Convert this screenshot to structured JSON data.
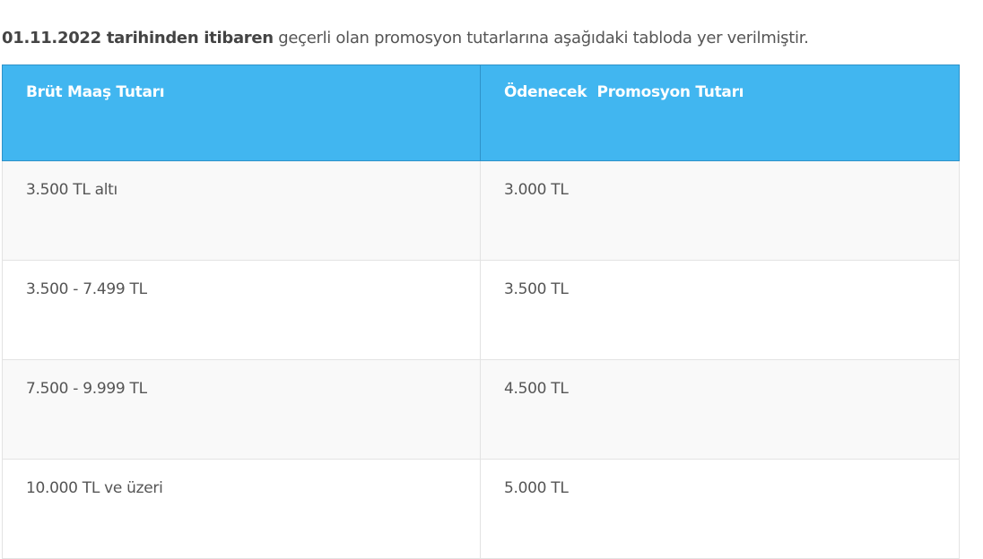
{
  "intro": {
    "bold": "01.11.2022 tarihinden itibaren",
    "rest": " geçerli olan promosyon tutarlarına aşağıdaki tabloda yer verilmiştir."
  },
  "colors": {
    "header_bg": "#41b6f0",
    "header_text": "#ffffff"
  },
  "table": {
    "headers": [
      "Brüt Maaş Tutarı",
      "Ödenecek  Promosyon Tutarı"
    ],
    "rows": [
      [
        "3.500 TL altı",
        "3.000 TL"
      ],
      [
        "3.500 - 7.499 TL",
        "3.500 TL"
      ],
      [
        "7.500 - 9.999 TL",
        "4.500 TL"
      ],
      [
        "10.000 TL ve üzeri",
        "5.000 TL"
      ]
    ]
  }
}
